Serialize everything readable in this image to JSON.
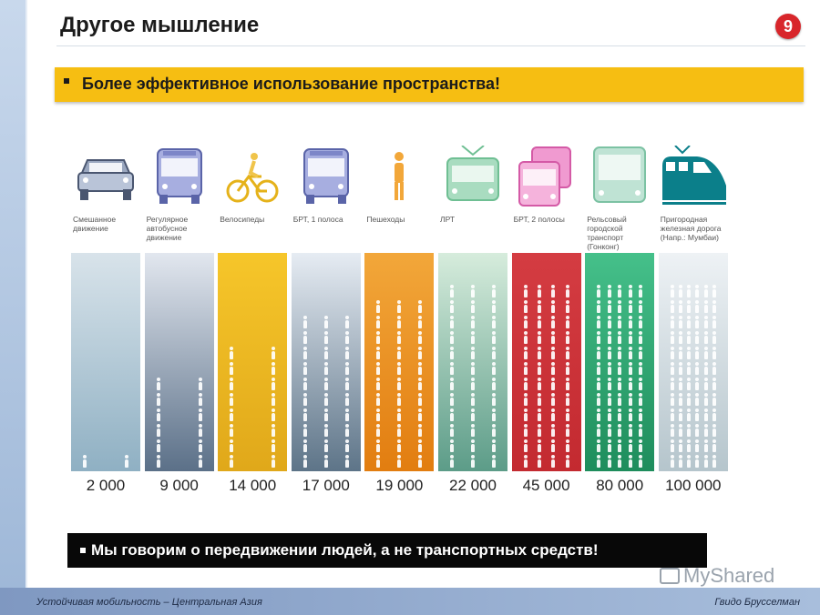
{
  "header": {
    "title": "Другое мышление",
    "page_number": "9"
  },
  "banner": {
    "text": "Более эффективное использование пространства!",
    "color": "#f6be12"
  },
  "columns": [
    {
      "label": "Смешанное движение",
      "value": "2 000",
      "icon": "car-icon",
      "people_rows": 1,
      "colors": [
        "#d8e3ea",
        "#8fb0c3"
      ]
    },
    {
      "label": "Регулярное автобусное движение",
      "value": "9 000",
      "icon": "bus-icon",
      "people_rows": 6,
      "colors": [
        "#e2e7ef",
        "#5b7088"
      ]
    },
    {
      "label": "Велосипеды",
      "value": "14 000",
      "icon": "bicycle-icon",
      "people_rows": 8,
      "colors": [
        "#f6c62a",
        "#e0a81a"
      ]
    },
    {
      "label": "БРТ, 1 полоса",
      "value": "17 000",
      "icon": "bus-icon",
      "people_rows": 10,
      "colors": [
        "#e6ecf3",
        "#5d7488"
      ]
    },
    {
      "label": "Пешеходы",
      "value": "19 000",
      "icon": "pedestrian-icon",
      "people_rows": 11,
      "colors": [
        "#f2a73a",
        "#e27d10"
      ]
    },
    {
      "label": "ЛРТ",
      "value": "22 000",
      "icon": "tram-icon",
      "people_rows": 12,
      "colors": [
        "#d6ecdc",
        "#5c9c88"
      ]
    },
    {
      "label": "БРТ, 2 полосы",
      "value": "45 000",
      "icon": "double-bus-icon",
      "people_rows": 12,
      "colors": [
        "#d43c42",
        "#c32a30"
      ]
    },
    {
      "label": "Рельсовый городской транспорт (Гонконг)",
      "value": "80 000",
      "icon": "metro-icon",
      "people_rows": 12,
      "colors": [
        "#45c08a",
        "#1e8d5c"
      ]
    },
    {
      "label": "Пригородная железная дорога (Напр.: Мумбаи)",
      "value": "100 000",
      "icon": "train-icon",
      "people_rows": 12,
      "colors": [
        "#eef2f5",
        "#b5c5cc"
      ]
    }
  ],
  "bottom_banner": {
    "text": "Мы говорим о передвижении людей, а не транспортных средств!"
  },
  "footer": {
    "left": "Устойчивая мобильность – Центральная Азия",
    "right": "Гвидо Брусселман"
  },
  "watermark": {
    "text": "MyShared"
  }
}
